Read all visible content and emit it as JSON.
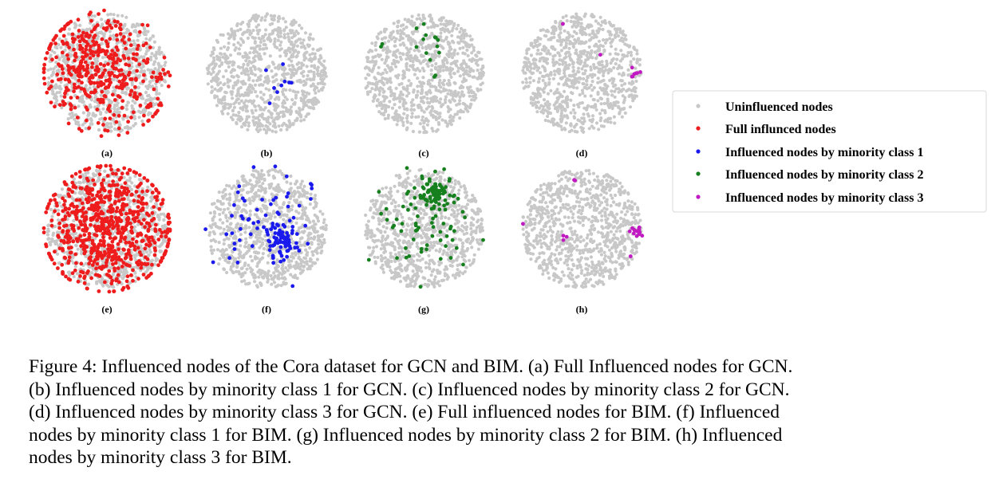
{
  "figure": {
    "panels": [
      {
        "label": "(a)",
        "highlight": "full"
      },
      {
        "label": "(b)",
        "highlight": "minority_class_1"
      },
      {
        "label": "(c)",
        "highlight": "minority_class_2"
      },
      {
        "label": "(d)",
        "highlight": "minority_class_3"
      },
      {
        "label": "(e)",
        "highlight": "full"
      },
      {
        "label": "(f)",
        "highlight": "minority_class_1"
      },
      {
        "label": "(g)",
        "highlight": "minority_class_2"
      },
      {
        "label": "(h)",
        "highlight": "minority_class_3"
      }
    ],
    "legend": [
      {
        "label": "Uninfluenced nodes",
        "color": "#c8c8c8"
      },
      {
        "label": "Full influnced nodes",
        "color": "#ee1c1c"
      },
      {
        "label": "Influenced nodes by minority class 1",
        "color": "#1a1aee"
      },
      {
        "label": "Influenced nodes by minority class 2",
        "color": "#17801e"
      },
      {
        "label": "Influenced nodes by minority class 3",
        "color": "#c21ac2"
      }
    ]
  },
  "caption": {
    "lines": [
      "Figure 4: Influenced nodes of the Cora dataset for GCN and BIM. (a) Full Influenced nodes for GCN.",
      "(b) Influenced nodes by minority class 1 for GCN. (c) Influenced nodes by minority class 2 for GCN.",
      "(d) Influenced nodes by minority class 3 for GCN. (e) Full influenced nodes for BIM. (f) Influenced",
      "nodes by minority class 1 for BIM. (g) Influenced nodes by minority class 2 for BIM. (h) Influenced",
      "nodes by minority class 3 for BIM."
    ]
  }
}
